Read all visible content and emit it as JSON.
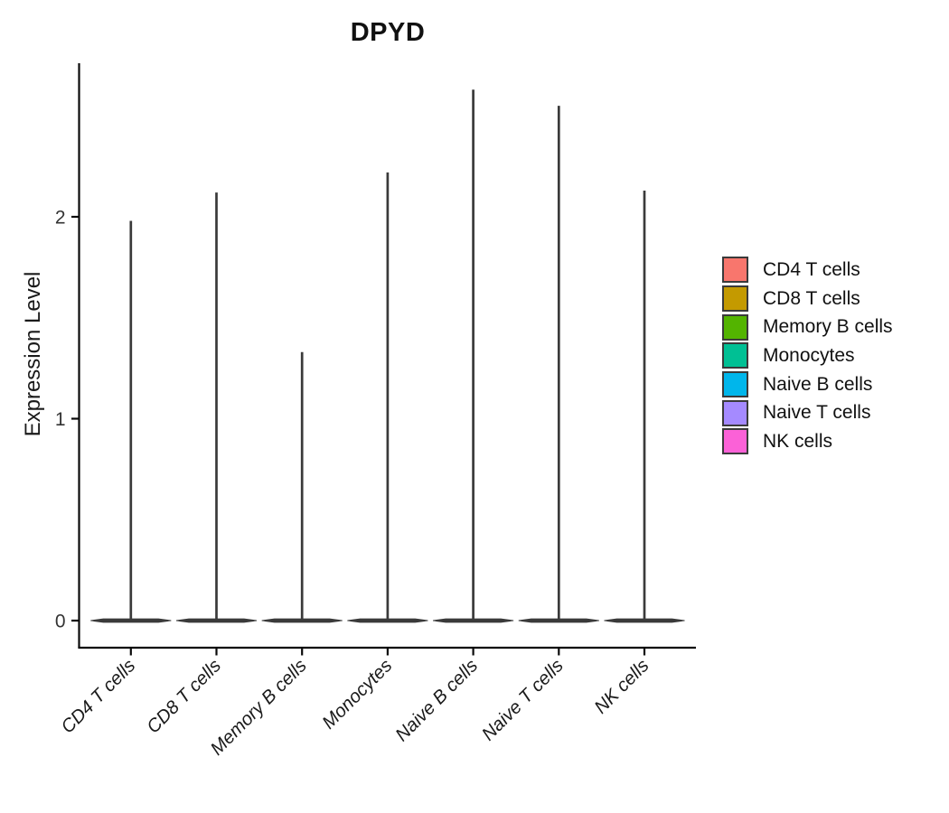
{
  "title": "DPYD",
  "chart_data": {
    "type": "violin",
    "title": "DPYD",
    "xlabel": "",
    "ylabel": "Expression Level",
    "categories": [
      "CD4 T cells",
      "CD8 T cells",
      "Memory B cells",
      "Monocytes",
      "Naive B cells",
      "Naive T cells",
      "NK cells"
    ],
    "series": [
      {
        "name": "CD4 T cells",
        "color": "#F8766D",
        "min": 0,
        "max_expression": 1.98,
        "density_peak_at": 0
      },
      {
        "name": "CD8 T cells",
        "color": "#C49A00",
        "min": 0,
        "max_expression": 2.12,
        "density_peak_at": 0
      },
      {
        "name": "Memory B cells",
        "color": "#53B400",
        "min": 0,
        "max_expression": 1.33,
        "density_peak_at": 0
      },
      {
        "name": "Monocytes",
        "color": "#00C094",
        "min": 0,
        "max_expression": 2.22,
        "density_peak_at": 0
      },
      {
        "name": "Naive B cells",
        "color": "#00B6EB",
        "min": 0,
        "max_expression": 2.63,
        "density_peak_at": 0
      },
      {
        "name": "Naive T cells",
        "color": "#A58AFF",
        "min": 0,
        "max_expression": 2.55,
        "density_peak_at": 0
      },
      {
        "name": "NK cells",
        "color": "#FB61D7",
        "min": 0,
        "max_expression": 2.13,
        "density_peak_at": 0
      }
    ],
    "y_ticks": [
      0,
      1,
      2
    ],
    "ylim": [
      -0.13,
      2.76
    ],
    "grid": false,
    "legend_position": "right",
    "outline_color": "#3a3a3a",
    "axis_color": "#0a0a0a",
    "tick_label_color": "#333333"
  },
  "legend": {
    "items": [
      {
        "label": "CD4 T cells",
        "color": "#F8766D"
      },
      {
        "label": "CD8 T cells",
        "color": "#C49A00"
      },
      {
        "label": "Memory B cells",
        "color": "#53B400"
      },
      {
        "label": "Monocytes",
        "color": "#00C094"
      },
      {
        "label": "Naive B cells",
        "color": "#00B6EB"
      },
      {
        "label": "Naive T cells",
        "color": "#A58AFF"
      },
      {
        "label": "NK cells",
        "color": "#FB61D7"
      }
    ]
  }
}
